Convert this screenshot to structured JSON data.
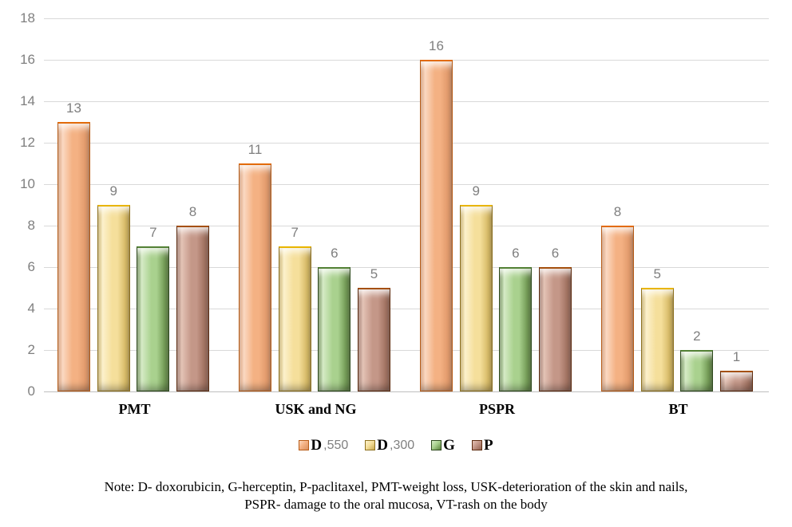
{
  "chart_data": {
    "type": "bar",
    "title": "",
    "xlabel": "",
    "ylabel": "",
    "categories": [
      "PMT",
      "USK and NG",
      "PSPR",
      "BT"
    ],
    "series": [
      {
        "name": "D550",
        "legend_main": "D",
        "legend_sub": ",550",
        "values": [
          13,
          11,
          16,
          8
        ],
        "colors": {
          "fill": "#F4B183",
          "light": "#FBD9C2",
          "dark": "#D98F60",
          "border": "#B85C17",
          "top": "#E26B0A"
        }
      },
      {
        "name": "D300",
        "legend_main": "D",
        "legend_sub": ",300",
        "values": [
          9,
          7,
          9,
          5
        ],
        "colors": {
          "fill": "#F5DF9B",
          "light": "#FCF1CC",
          "dark": "#C9A94E",
          "border": "#8F7220",
          "top": "#E9B500"
        }
      },
      {
        "name": "G",
        "legend_main": "G",
        "legend_sub": "",
        "values": [
          7,
          6,
          6,
          2
        ],
        "colors": {
          "fill": "#A9D18E",
          "light": "#D6EBC6",
          "dark": "#59813B",
          "border": "#2E4A1D",
          "top": "#538135"
        }
      },
      {
        "name": "P",
        "legend_main": "P",
        "legend_sub": "",
        "values": [
          8,
          5,
          6,
          1
        ],
        "colors": {
          "fill": "#C49788",
          "light": "#E4C3B6",
          "dark": "#92614F",
          "border": "#5E2C10",
          "top": "#A5500E"
        }
      }
    ],
    "ylim": [
      0,
      18
    ],
    "yticks": [
      0,
      2,
      4,
      6,
      8,
      10,
      12,
      14,
      16,
      18
    ],
    "grid": true,
    "legend_position": "bottom"
  },
  "axis_colors": {
    "tick_label": "#7F7F7F",
    "gridline": "#D9D9D9",
    "baseline": "#BFBFBF",
    "value_label": "#7F7F7F"
  },
  "note": {
    "line1": "Note: D- doxorubicin, G-herceptin, P-paclitaxel, PMT-weight loss, USK-deterioration of the skin and nails,",
    "line2": "PSPR- damage to the oral mucosa, VT-rash on the body"
  }
}
